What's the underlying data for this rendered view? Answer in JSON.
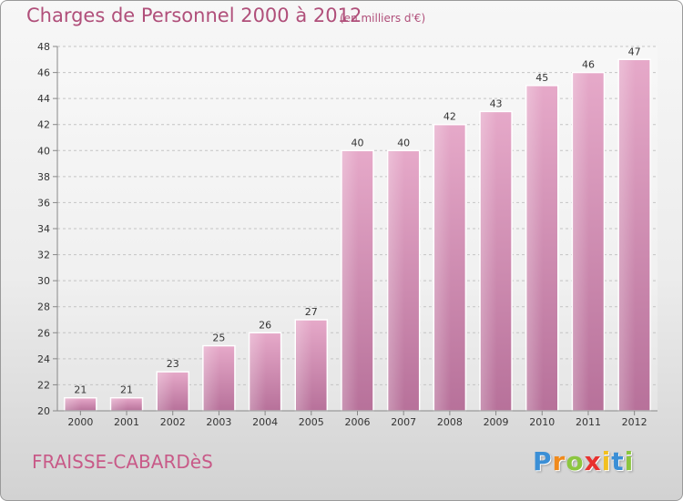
{
  "header": {
    "title": "Charges de Personnel 2000 à 2012",
    "subtitle": "(en milliers d'€)"
  },
  "footer": {
    "commune": "FRAISSE-CABARDèS",
    "logo_letters": [
      "P",
      "r",
      "o",
      "x",
      "i",
      "t",
      "i"
    ],
    "logo_colors": [
      "#3b8fd6",
      "#f08a1c",
      "#8cc63f",
      "#e8312f",
      "#f2c020",
      "#3b8fd6",
      "#8cc63f"
    ]
  },
  "colors": {
    "bar": "#d98bb3",
    "title": "#b04f7a",
    "commune": "#c85a88"
  },
  "chart_data": {
    "type": "bar",
    "categories": [
      "2000",
      "2001",
      "2002",
      "2003",
      "2004",
      "2005",
      "2006",
      "2007",
      "2008",
      "2009",
      "2010",
      "2011",
      "2012"
    ],
    "values": [
      21,
      21,
      23,
      25,
      26,
      27,
      40,
      40,
      42,
      43,
      45,
      46,
      47
    ],
    "ylim": [
      20,
      48
    ],
    "yticks": [
      20,
      22,
      24,
      26,
      28,
      30,
      32,
      34,
      36,
      38,
      40,
      42,
      44,
      46,
      48
    ],
    "grid": true,
    "xlabel": "",
    "ylabel": ""
  }
}
